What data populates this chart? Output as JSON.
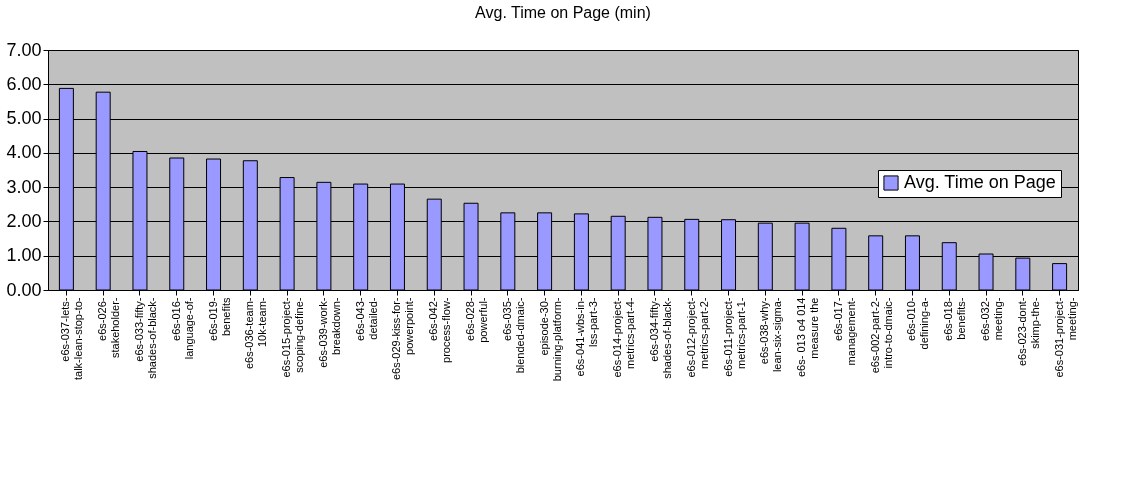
{
  "chart_data": {
    "type": "bar",
    "title": "Avg. Time on Page (min)",
    "categories": [
      "e6s-037-lets-\ntalk-lean-stop-to-",
      "e6s-026-\nstakeholder-",
      "e6s-033-fifty-\nshades-of-black-",
      "e6s-016-\nlanguage-of-",
      "e6s-019-\nbenefits",
      "e6s-036-team-\n10k-team-",
      "e6s-015-project-\nscoping-define-",
      "e6s-039-work-\nbreakdown-",
      "e6s-043-\ndetailed-",
      "e6s-029-kiss-for-\npowerpoint-",
      "e6s-042-\nprocess-flow-",
      "e6s-028-\npowerful-",
      "e6s-035-\nblended-dmaic-",
      "episode-30-\nburning-platform-",
      "e6s-041-wbs-in-\nlss-part-3-",
      "e6s-014-project-\nmetrics-part-4-",
      "e6s-034-fifty-\nshades-of-black-",
      "e6s-012-project-\nmetrics-part-2-",
      "e6s-011-project-\nmetrics-part-1-",
      "e6s-038-why-\nlean-six-sigma-",
      "e6s- 013 o4 014\nmeasure the",
      "e6s-017-\nmanagement-",
      "e6s-002-part-2-\nintro-to-dmaic-",
      "e6s-010-\ndefining-a-",
      "e6s-018-\nbenefits-",
      "e6s-032-\nmeeting-",
      "e6s-023-dont-\nskimp-the-",
      "e6s-031-project-\nmeeting-"
    ],
    "series": [
      {
        "name": "Avg. Time on Page",
        "color": "#9999ff",
        "values": [
          5.88,
          5.77,
          4.04,
          3.85,
          3.82,
          3.77,
          3.28,
          3.14,
          3.09,
          3.09,
          2.65,
          2.53,
          2.25,
          2.25,
          2.22,
          2.15,
          2.12,
          2.06,
          2.05,
          1.95,
          1.95,
          1.8,
          1.58,
          1.58,
          1.38,
          1.05,
          0.93,
          0.77
        ]
      }
    ],
    "ylim": [
      0,
      7
    ],
    "yticks": [
      {
        "value": 0,
        "label": "0.00"
      },
      {
        "value": 1,
        "label": "1.00"
      },
      {
        "value": 2,
        "label": "2.00"
      },
      {
        "value": 3,
        "label": "3.00"
      },
      {
        "value": 4,
        "label": "4.00"
      },
      {
        "value": 5,
        "label": "5.00"
      },
      {
        "value": 6,
        "label": "6.00"
      },
      {
        "value": 7,
        "label": "7.00"
      }
    ],
    "grid": "y",
    "legend": "right"
  }
}
